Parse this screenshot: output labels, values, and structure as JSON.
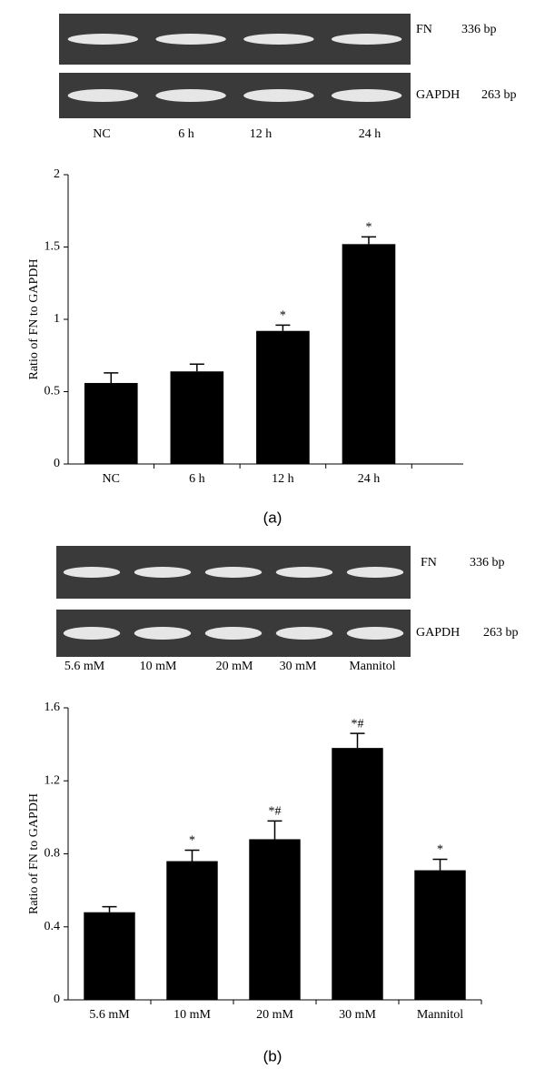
{
  "figure": {
    "panels": [
      {
        "label": "(a)",
        "gel": {
          "rows": [
            {
              "name": "FN",
              "size": "336 bp"
            },
            {
              "name": "GAPDH",
              "size": "263 bp"
            }
          ],
          "lanes": [
            "NC",
            "6 h",
            "12 h",
            "24 h"
          ]
        }
      },
      {
        "label": "(b)",
        "gel": {
          "rows": [
            {
              "name": "FN",
              "size": "336 bp"
            },
            {
              "name": "GAPDH",
              "size": "263 bp"
            }
          ],
          "lanes": [
            "5.6 mM",
            "10 mM",
            "20 mM",
            "30 mM",
            "Mannitol"
          ]
        }
      }
    ]
  },
  "chart_data": [
    {
      "type": "bar",
      "y_label": "Ratio of FN to GAPDH",
      "categories": [
        "NC",
        "6 h",
        "12 h",
        "24 h"
      ],
      "values": [
        0.56,
        0.64,
        0.92,
        1.52
      ],
      "errors": [
        0.07,
        0.05,
        0.04,
        0.05
      ],
      "annotations": [
        null,
        null,
        "*",
        "*"
      ],
      "color": "#000000",
      "ylim": [
        0,
        2
      ],
      "yticks": [
        0,
        0.5,
        1,
        1.5,
        2
      ]
    },
    {
      "type": "bar",
      "y_label": "Ratio of FN to GAPDH",
      "categories": [
        "5.6 mM",
        "10 mM",
        "20 mM",
        "30 mM",
        "Mannitol"
      ],
      "values": [
        0.48,
        0.76,
        0.88,
        1.38,
        0.71
      ],
      "errors": [
        0.03,
        0.06,
        0.1,
        0.08,
        0.06
      ],
      "annotations": [
        null,
        "*",
        "*#",
        "*#",
        "*"
      ],
      "color": "#000000",
      "ylim": [
        0,
        1.6
      ],
      "yticks": [
        0,
        0.4,
        0.8,
        1.2,
        1.6
      ]
    }
  ]
}
